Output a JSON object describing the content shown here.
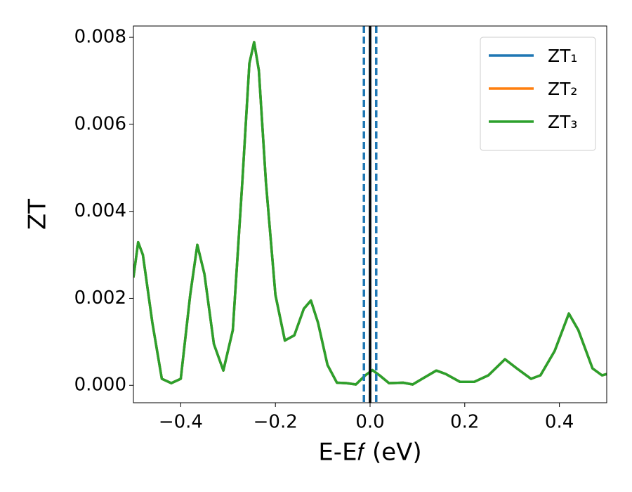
{
  "chart_data": {
    "type": "line",
    "xlabel": "E-E𝑓 (eV)",
    "ylabel": "ZT",
    "x": [
      -0.5,
      -0.49,
      -0.48,
      -0.46,
      -0.44,
      -0.42,
      -0.4,
      -0.38,
      -0.365,
      -0.35,
      -0.33,
      -0.31,
      -0.29,
      -0.27,
      -0.255,
      -0.245,
      -0.235,
      -0.22,
      -0.2,
      -0.18,
      -0.16,
      -0.14,
      -0.125,
      -0.11,
      -0.09,
      -0.07,
      -0.05,
      -0.03,
      -0.01,
      0.005,
      0.02,
      0.04,
      0.07,
      0.09,
      0.11,
      0.14,
      0.16,
      0.19,
      0.22,
      0.25,
      0.285,
      0.31,
      0.34,
      0.36,
      0.39,
      0.42,
      0.44,
      0.47,
      0.49,
      0.5
    ],
    "series": [
      {
        "name": "ZT₁",
        "color": "#1f77b4",
        "values": [
          0.00248,
          0.00329,
          0.003,
          0.00144,
          0.00015,
          5e-05,
          0.00015,
          0.00208,
          0.00323,
          0.00256,
          0.00095,
          0.00034,
          0.00127,
          0.00466,
          0.0074,
          0.00789,
          0.00724,
          0.00466,
          0.00208,
          0.00103,
          0.00115,
          0.00176,
          0.00195,
          0.00144,
          0.00047,
          6e-05,
          5e-05,
          2e-05,
          0.00023,
          0.00035,
          0.00023,
          5e-05,
          6e-05,
          2e-05,
          0.00015,
          0.00034,
          0.00026,
          8e-05,
          8e-05,
          0.00023,
          0.0006,
          0.00039,
          0.00015,
          0.00023,
          0.00079,
          0.00165,
          0.00127,
          0.00039,
          0.00023,
          0.00026
        ]
      },
      {
        "name": "ZT₂",
        "color": "#ff7f0e",
        "values": [
          0.00248,
          0.00329,
          0.003,
          0.00144,
          0.00015,
          5e-05,
          0.00015,
          0.00208,
          0.00323,
          0.00256,
          0.00095,
          0.00034,
          0.00127,
          0.00466,
          0.0074,
          0.00789,
          0.00724,
          0.00466,
          0.00208,
          0.00103,
          0.00115,
          0.00176,
          0.00195,
          0.00144,
          0.00047,
          6e-05,
          5e-05,
          2e-05,
          0.00023,
          0.00035,
          0.00023,
          5e-05,
          6e-05,
          2e-05,
          0.00015,
          0.00034,
          0.00026,
          8e-05,
          8e-05,
          0.00023,
          0.0006,
          0.00039,
          0.00015,
          0.00023,
          0.00079,
          0.00165,
          0.00127,
          0.00039,
          0.00023,
          0.00026
        ]
      },
      {
        "name": "ZT₃",
        "color": "#2ca02c",
        "values": [
          0.00248,
          0.00329,
          0.003,
          0.00144,
          0.00015,
          5e-05,
          0.00015,
          0.00208,
          0.00323,
          0.00256,
          0.00095,
          0.00034,
          0.00127,
          0.00466,
          0.0074,
          0.00789,
          0.00724,
          0.00466,
          0.00208,
          0.00103,
          0.00115,
          0.00176,
          0.00195,
          0.00144,
          0.00047,
          6e-05,
          5e-05,
          2e-05,
          0.00023,
          0.00035,
          0.00023,
          5e-05,
          6e-05,
          2e-05,
          0.00015,
          0.00034,
          0.00026,
          8e-05,
          8e-05,
          0.00023,
          0.0006,
          0.00039,
          0.00015,
          0.00023,
          0.00079,
          0.00165,
          0.00127,
          0.00039,
          0.00023,
          0.00026
        ]
      }
    ],
    "vlines": [
      {
        "x": 0,
        "color": "#1f77b4",
        "style": "solid"
      },
      {
        "x": 0,
        "color": "#000000",
        "style": "solid"
      },
      {
        "x": -0.013,
        "color": "#1f77b4",
        "style": "dashed"
      },
      {
        "x": 0.013,
        "color": "#1f77b4",
        "style": "dashed"
      }
    ],
    "xlim": [
      -0.5,
      0.5
    ],
    "xticks": [
      {
        "value": -0.4,
        "label": "−0.4"
      },
      {
        "value": -0.2,
        "label": "−0.2"
      },
      {
        "value": 0,
        "label": "0.0"
      },
      0.2,
      0.4
    ],
    "ylim": [
      -0.0004,
      0.00826
    ],
    "yticks": [
      {
        "value": 0,
        "label": "0.000"
      },
      0.002,
      0.004,
      0.006,
      0.008
    ],
    "legend": "upper right",
    "grid": false
  }
}
